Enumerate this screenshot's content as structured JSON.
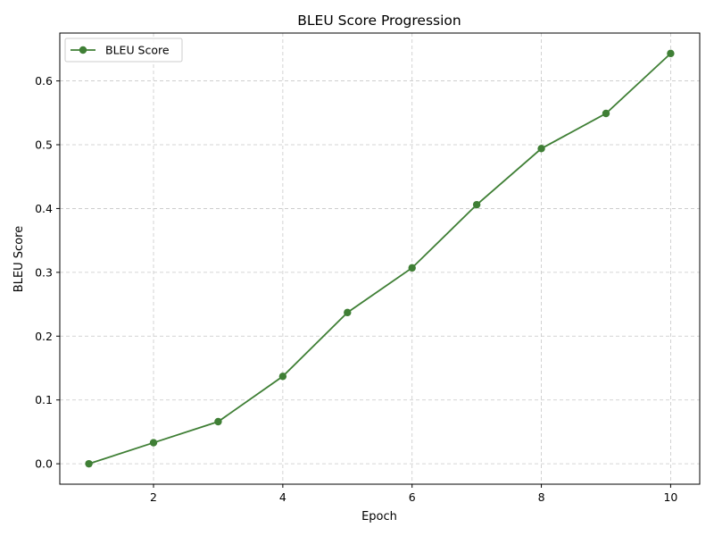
{
  "chart_data": {
    "type": "line",
    "title": "BLEU Score Progression",
    "xlabel": "Epoch",
    "ylabel": "BLEU Score",
    "xlim": [
      0.55,
      10.45
    ],
    "ylim": [
      -0.032,
      0.675
    ],
    "xticks": [
      2,
      4,
      6,
      8,
      10
    ],
    "xtick_labels": [
      "2",
      "4",
      "6",
      "8",
      "10"
    ],
    "yticks": [
      0.0,
      0.1,
      0.2,
      0.3,
      0.4,
      0.5,
      0.6
    ],
    "ytick_labels": [
      "0.0",
      "0.1",
      "0.2",
      "0.3",
      "0.4",
      "0.5",
      "0.6"
    ],
    "grid": true,
    "legend_position": "top-left",
    "series": [
      {
        "name": "BLEU Score",
        "color": "#3f7f35",
        "marker": "circle",
        "x": [
          1,
          2,
          3,
          4,
          5,
          6,
          7,
          8,
          9,
          10
        ],
        "y": [
          0.0,
          0.033,
          0.066,
          0.137,
          0.237,
          0.307,
          0.406,
          0.494,
          0.549,
          0.643
        ]
      }
    ]
  }
}
